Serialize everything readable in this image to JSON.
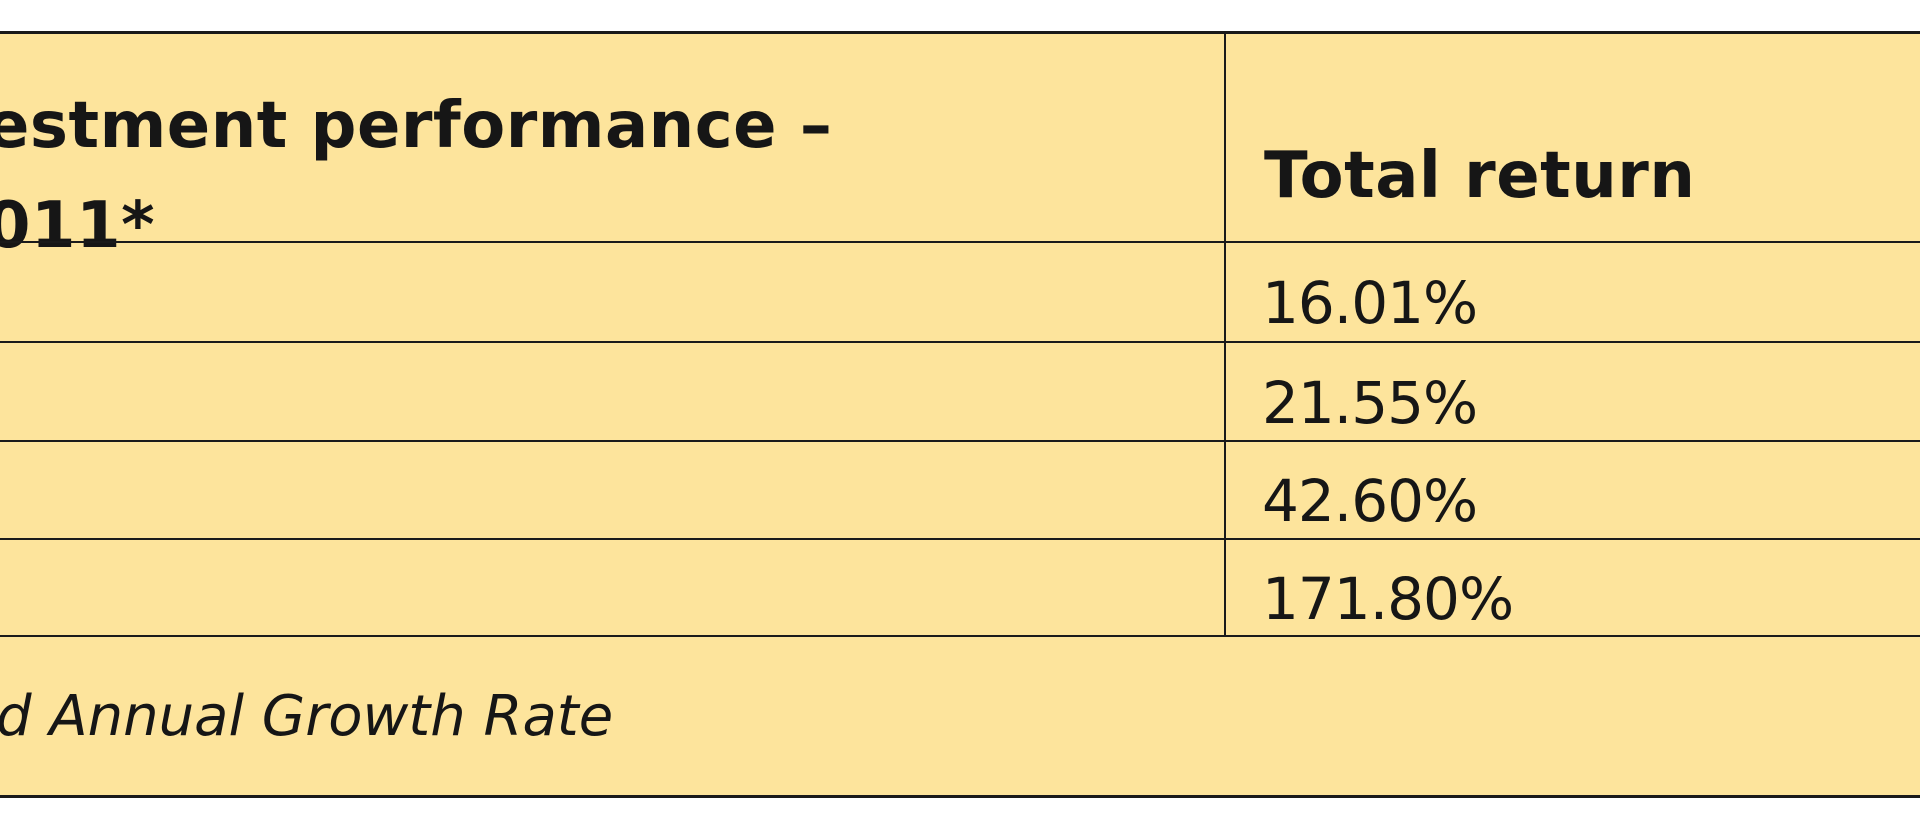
{
  "table": {
    "header": {
      "first_column": [
        "estment performance –",
        "011*"
      ],
      "second_column": "Total return"
    },
    "rows": [
      "16.01%",
      "21.55%",
      "42.60%",
      "171.80%"
    ],
    "footnote": "d Annual Growth Rate"
  }
}
